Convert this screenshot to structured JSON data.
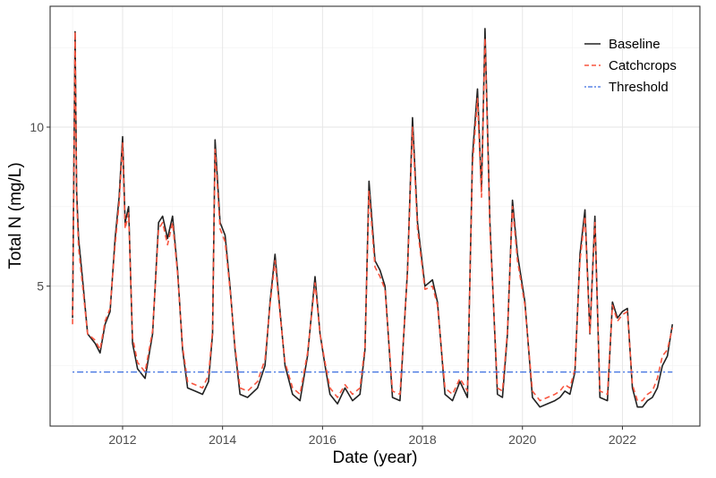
{
  "chart_data": {
    "type": "line",
    "title": "",
    "xlabel": "Date (year)",
    "ylabel": "Total N (mg/L)",
    "xlim": [
      2010.55,
      2023.55
    ],
    "ylim": [
      0.6,
      13.8
    ],
    "x_ticks": [
      2012,
      2014,
      2016,
      2018,
      2020,
      2022
    ],
    "x_tick_labels": [
      "2012",
      "2014",
      "2016",
      "2018",
      "2020",
      "2022"
    ],
    "y_ticks": [
      5,
      10
    ],
    "y_tick_labels": [
      "5",
      "10"
    ],
    "grid": true,
    "legend": {
      "position": "top-right",
      "entries": [
        "Baseline",
        "Catchcrops",
        "Threshold"
      ]
    },
    "series": [
      {
        "name": "Baseline",
        "color": "#222222",
        "style": "solid",
        "x": [
          2011.0,
          2011.05,
          2011.08,
          2011.12,
          2011.2,
          2011.3,
          2011.45,
          2011.55,
          2011.65,
          2011.75,
          2011.85,
          2011.93,
          2012.0,
          2012.05,
          2012.12,
          2012.2,
          2012.3,
          2012.45,
          2012.6,
          2012.72,
          2012.8,
          2012.9,
          2013.0,
          2013.1,
          2013.2,
          2013.3,
          2013.45,
          2013.6,
          2013.72,
          2013.8,
          2013.85,
          2013.95,
          2014.05,
          2014.15,
          2014.25,
          2014.35,
          2014.5,
          2014.7,
          2014.85,
          2014.95,
          2015.05,
          2015.15,
          2015.25,
          2015.4,
          2015.55,
          2015.7,
          2015.85,
          2015.95,
          2016.05,
          2016.15,
          2016.3,
          2016.45,
          2016.6,
          2016.75,
          2016.85,
          2016.93,
          2017.05,
          2017.15,
          2017.25,
          2017.4,
          2017.55,
          2017.7,
          2017.8,
          2017.9,
          2018.05,
          2018.2,
          2018.3,
          2018.45,
          2018.6,
          2018.75,
          2018.9,
          2019.0,
          2019.1,
          2019.18,
          2019.25,
          2019.35,
          2019.5,
          2019.6,
          2019.7,
          2019.8,
          2019.9,
          2020.05,
          2020.2,
          2020.35,
          2020.5,
          2020.65,
          2020.75,
          2020.85,
          2020.95,
          2021.05,
          2021.15,
          2021.25,
          2021.35,
          2021.45,
          2021.55,
          2021.7,
          2021.8,
          2021.9,
          2022.0,
          2022.1,
          2022.2,
          2022.3,
          2022.4,
          2022.5,
          2022.6,
          2022.7,
          2022.8,
          2022.9,
          2023.0
        ],
        "y": [
          4.0,
          13.0,
          8.0,
          6.5,
          5.2,
          3.5,
          3.2,
          2.9,
          3.8,
          4.2,
          6.5,
          7.8,
          9.7,
          7.0,
          7.5,
          3.2,
          2.4,
          2.1,
          3.5,
          7.0,
          7.2,
          6.5,
          7.2,
          5.5,
          3.0,
          1.8,
          1.7,
          1.6,
          2.0,
          3.5,
          9.6,
          7.0,
          6.6,
          5.0,
          3.0,
          1.6,
          1.5,
          1.8,
          2.5,
          4.5,
          6.0,
          4.2,
          2.5,
          1.6,
          1.4,
          2.8,
          5.3,
          3.5,
          2.5,
          1.6,
          1.3,
          1.8,
          1.4,
          1.6,
          3.0,
          8.3,
          5.8,
          5.5,
          5.0,
          1.5,
          1.4,
          5.5,
          10.3,
          7.0,
          5.0,
          5.2,
          4.5,
          1.6,
          1.4,
          2.0,
          1.5,
          9.1,
          11.2,
          8.0,
          13.1,
          7.0,
          1.6,
          1.5,
          3.5,
          7.7,
          6.0,
          4.5,
          1.5,
          1.2,
          1.3,
          1.4,
          1.5,
          1.7,
          1.6,
          2.3,
          6.0,
          7.4,
          3.5,
          7.2,
          1.5,
          1.4,
          4.5,
          4.0,
          4.2,
          4.3,
          1.8,
          1.2,
          1.2,
          1.4,
          1.5,
          1.8,
          2.5,
          2.8,
          3.8
        ]
      },
      {
        "name": "Catchcrops",
        "color": "#f8553f",
        "style": "dashed",
        "x": [
          2011.0,
          2011.05,
          2011.08,
          2011.12,
          2011.2,
          2011.3,
          2011.45,
          2011.55,
          2011.65,
          2011.75,
          2011.85,
          2011.93,
          2012.0,
          2012.05,
          2012.12,
          2012.2,
          2012.3,
          2012.45,
          2012.6,
          2012.72,
          2012.8,
          2012.9,
          2013.0,
          2013.1,
          2013.2,
          2013.3,
          2013.45,
          2013.6,
          2013.72,
          2013.8,
          2013.85,
          2013.95,
          2014.05,
          2014.15,
          2014.25,
          2014.35,
          2014.5,
          2014.7,
          2014.85,
          2014.95,
          2015.05,
          2015.15,
          2015.25,
          2015.4,
          2015.55,
          2015.7,
          2015.85,
          2015.95,
          2016.05,
          2016.15,
          2016.3,
          2016.45,
          2016.6,
          2016.75,
          2016.85,
          2016.93,
          2017.05,
          2017.15,
          2017.25,
          2017.4,
          2017.55,
          2017.7,
          2017.8,
          2017.9,
          2018.05,
          2018.2,
          2018.3,
          2018.45,
          2018.6,
          2018.75,
          2018.9,
          2019.0,
          2019.1,
          2019.18,
          2019.25,
          2019.35,
          2019.5,
          2019.6,
          2019.7,
          2019.8,
          2019.9,
          2020.05,
          2020.2,
          2020.35,
          2020.5,
          2020.65,
          2020.75,
          2020.85,
          2020.95,
          2021.05,
          2021.15,
          2021.25,
          2021.35,
          2021.45,
          2021.55,
          2021.7,
          2021.8,
          2021.9,
          2022.0,
          2022.1,
          2022.2,
          2022.3,
          2022.4,
          2022.5,
          2022.6,
          2022.7,
          2022.8,
          2022.9,
          2023.0
        ],
        "y": [
          3.8,
          13.0,
          7.8,
          6.2,
          5.0,
          3.5,
          3.3,
          3.0,
          3.9,
          4.3,
          6.3,
          7.6,
          9.5,
          6.8,
          7.3,
          3.4,
          2.6,
          2.3,
          3.6,
          6.8,
          7.0,
          6.3,
          7.0,
          5.4,
          3.1,
          2.0,
          1.9,
          1.8,
          2.2,
          3.6,
          9.3,
          6.8,
          6.4,
          4.9,
          3.1,
          1.8,
          1.7,
          2.0,
          2.7,
          4.4,
          5.8,
          4.1,
          2.6,
          1.8,
          1.6,
          2.9,
          5.1,
          3.5,
          2.6,
          1.8,
          1.5,
          1.9,
          1.6,
          1.8,
          3.1,
          8.0,
          5.6,
          5.3,
          4.9,
          1.7,
          1.6,
          5.4,
          10.0,
          6.8,
          4.9,
          5.0,
          4.4,
          1.8,
          1.6,
          2.1,
          1.7,
          8.8,
          10.9,
          7.8,
          12.8,
          6.8,
          1.8,
          1.7,
          3.6,
          7.5,
          5.8,
          4.4,
          1.7,
          1.4,
          1.5,
          1.6,
          1.7,
          1.9,
          1.8,
          2.4,
          5.8,
          7.2,
          3.5,
          7.0,
          1.7,
          1.6,
          4.4,
          3.9,
          4.1,
          4.2,
          1.9,
          1.4,
          1.4,
          1.6,
          1.7,
          2.1,
          2.8,
          3.0,
          3.7
        ]
      },
      {
        "name": "Threshold",
        "color": "#3b6ee0",
        "style": "dotdash",
        "x": [
          2011.0,
          2023.0
        ],
        "y": [
          2.3,
          2.3
        ]
      }
    ]
  }
}
